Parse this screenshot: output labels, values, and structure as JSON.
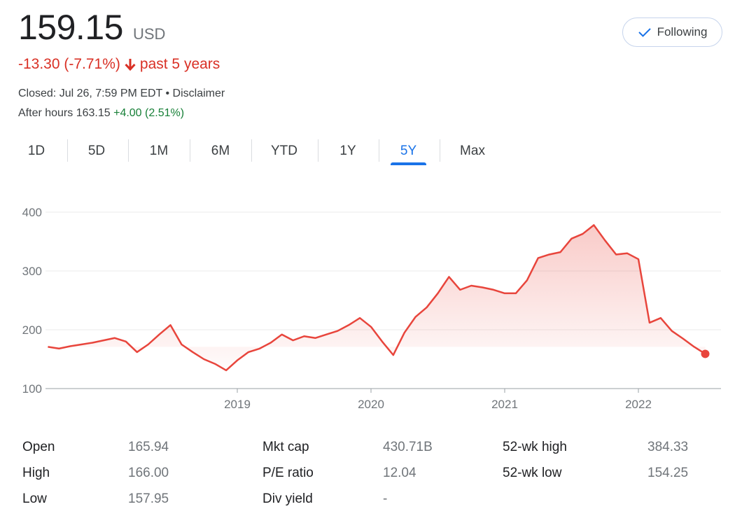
{
  "quote": {
    "price": "159.15",
    "currency": "USD",
    "change": "-13.30 (-7.71%)",
    "period": "past 5 years",
    "closed": "Closed: Jul 26, 7:59 PM EDT",
    "separator": " • ",
    "disclaimer": "Disclaimer",
    "after_hours_label": "After hours 163.15",
    "after_hours_change": "+4.00 (2.51%)"
  },
  "follow_button": {
    "label": "Following",
    "icon": "check-icon"
  },
  "tabs": [
    "1D",
    "5D",
    "1M",
    "6M",
    "YTD",
    "1Y",
    "5Y",
    "Max"
  ],
  "active_tab": "5Y",
  "colors": {
    "line": "#e8453c",
    "negative": "#d93025",
    "positive": "#188038",
    "accent": "#1a73e8"
  },
  "chart_data": {
    "type": "area",
    "y_ticks": [
      "100",
      "200",
      "300",
      "400"
    ],
    "x_ticks": [
      "2019",
      "2020",
      "2021",
      "2022"
    ],
    "ylim": [
      100,
      400
    ],
    "grid": true,
    "x": [
      "2017-08",
      "2017-09",
      "2017-10",
      "2017-11",
      "2017-12",
      "2018-01",
      "2018-02",
      "2018-03",
      "2018-04",
      "2018-05",
      "2018-06",
      "2018-07",
      "2018-08",
      "2018-09",
      "2018-10",
      "2018-11",
      "2018-12",
      "2019-01",
      "2019-02",
      "2019-03",
      "2019-04",
      "2019-05",
      "2019-06",
      "2019-07",
      "2019-08",
      "2019-09",
      "2019-10",
      "2019-11",
      "2019-12",
      "2020-01",
      "2020-02",
      "2020-03",
      "2020-04",
      "2020-05",
      "2020-06",
      "2020-07",
      "2020-08",
      "2020-09",
      "2020-10",
      "2020-11",
      "2020-12",
      "2021-01",
      "2021-02",
      "2021-03",
      "2021-04",
      "2021-05",
      "2021-06",
      "2021-07",
      "2021-08",
      "2021-09",
      "2021-10",
      "2021-11",
      "2021-12",
      "2022-01",
      "2022-02",
      "2022-03",
      "2022-04",
      "2022-05",
      "2022-06",
      "2022-07"
    ],
    "values": [
      171,
      168,
      172,
      175,
      178,
      182,
      186,
      180,
      162,
      175,
      192,
      208,
      175,
      162,
      150,
      142,
      131,
      148,
      162,
      168,
      178,
      192,
      182,
      189,
      186,
      192,
      198,
      208,
      220,
      205,
      180,
      157,
      195,
      222,
      238,
      262,
      290,
      268,
      275,
      272,
      268,
      262,
      262,
      284,
      322,
      328,
      332,
      355,
      363,
      378,
      352,
      328,
      330,
      320,
      212,
      220,
      198,
      185,
      171,
      159
    ]
  },
  "stats": [
    [
      {
        "label": "Open",
        "value": "165.94"
      },
      {
        "label": "High",
        "value": "166.00"
      },
      {
        "label": "Low",
        "value": "157.95"
      }
    ],
    [
      {
        "label": "Mkt cap",
        "value": "430.71B"
      },
      {
        "label": "P/E ratio",
        "value": "12.04"
      },
      {
        "label": "Div yield",
        "value": "-"
      }
    ],
    [
      {
        "label": "52-wk high",
        "value": "384.33"
      },
      {
        "label": "52-wk low",
        "value": "154.25"
      }
    ]
  ]
}
